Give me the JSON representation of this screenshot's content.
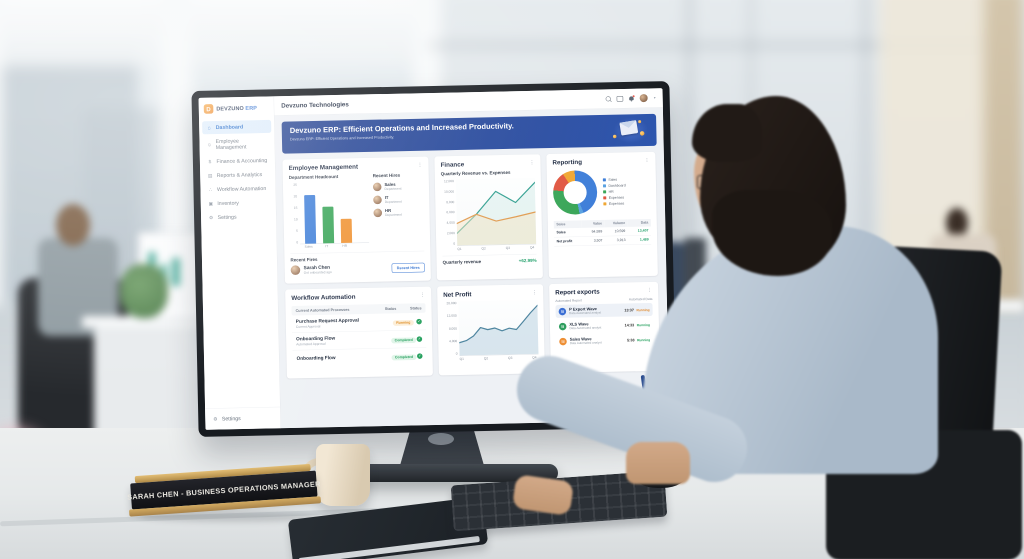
{
  "scene": {
    "nameplate": "SARAH CHEN - BUSINESS OPERATIONS MANAGER"
  },
  "app": {
    "brand": {
      "name": "DEVZUNO",
      "suffix": "ERP",
      "mark": "D"
    },
    "topbar": {
      "company": "Devzuno Technologies",
      "caret": "▾"
    },
    "banner": {
      "title": "Devzuno ERP: Efficient Operations and Increased Productivity.",
      "subtitle": "Devzuno ERP: Efficient Operations and Increased Productivity."
    },
    "sidebar": {
      "items": [
        {
          "label": "Dashboard",
          "icon": "home-icon",
          "glyph": "⌂",
          "active": true
        },
        {
          "label": "Employee Management",
          "icon": "people-icon",
          "glyph": "☺",
          "active": false
        },
        {
          "label": "Finance & Accounting",
          "icon": "dollar-icon",
          "glyph": "$",
          "active": false
        },
        {
          "label": "Reports & Analytics",
          "icon": "chart-icon",
          "glyph": "▤",
          "active": false
        },
        {
          "label": "Workflow Automation",
          "icon": "share-nodes-icon",
          "glyph": "∴",
          "active": false
        },
        {
          "label": "Inventory",
          "icon": "box-icon",
          "glyph": "▣",
          "active": false
        },
        {
          "label": "Settings",
          "icon": "gear-icon",
          "glyph": "⚙",
          "active": false
        }
      ],
      "footer": {
        "label": "Settings",
        "icon": "gear-icon",
        "glyph": "⚙"
      }
    },
    "cards": {
      "employee": {
        "title": "Employee Management",
        "menu": "⋮",
        "hires_title": "Recent Hires",
        "hires": [
          {
            "name": "Sales",
            "sub": "Department"
          },
          {
            "name": "IT",
            "sub": "Department"
          },
          {
            "name": "HR",
            "sub": "Department"
          }
        ],
        "bottom_title": "Recent Fires",
        "person": {
          "name": "Sarah Chen",
          "sub": "Got onboarded ago"
        },
        "button": "Recent Hires"
      },
      "finance": {
        "title": "Finance",
        "menu": "⋮",
        "footer_label": "Quarterly revenue",
        "footer_value": "+62.99%"
      },
      "reporting": {
        "title": "Reporting",
        "menu": "⋮",
        "table": {
          "headers": [
            "Sales",
            "Value",
            "Volume",
            "Data"
          ],
          "rows": [
            {
              "cells": [
                "Sales",
                "94,599",
                "10,599",
                "13,407"
              ]
            },
            {
              "cells": [
                "Net profit",
                "3,507",
                "3,913",
                "1,489"
              ]
            }
          ]
        }
      },
      "workflow": {
        "title": "Workflow Automation",
        "menu": "⋮",
        "headers": [
          "Current Automated Processes",
          "Status",
          "Status"
        ],
        "rows": [
          {
            "name": "Purchase Request Approval",
            "sub": "Current Approval",
            "status": "Running",
            "status_color": "#df8a1f",
            "check": "✓"
          },
          {
            "name": "Onboarding Flow",
            "sub": "Automated Approval",
            "status": "Completed",
            "status_color": "#27a15f",
            "check": "✓"
          },
          {
            "name": "Onboarding Flow",
            "sub": "",
            "status": "Completed",
            "status_color": "#27a15f",
            "check": "✓"
          }
        ]
      },
      "net_profit": {
        "title": "Net Profit",
        "menu": "⋮"
      },
      "reports": {
        "title": "Report exports",
        "menu": "⋮",
        "col_left": "Automated Report",
        "col_right": "Automated Data",
        "rows": [
          {
            "name": "P Export Wave",
            "sub": "Data Automated analyst",
            "value": "13:37",
            "status": "Running",
            "color": "#3b6fd4"
          },
          {
            "name": "XLS Wave",
            "sub": "Data Automated analyst",
            "value": "14:33",
            "status": "Running",
            "color": "#2f9e5f"
          },
          {
            "name": "Sales Wave",
            "sub": "Data Automated analyst",
            "value": "5:38",
            "status": "Running",
            "color": "#ee8f35"
          }
        ]
      }
    }
  },
  "chart_data": [
    {
      "name": "department_headcount",
      "type": "bar",
      "title": "Department Headcount",
      "categories": [
        "Sales",
        "IT",
        "HR"
      ],
      "values": [
        20,
        15,
        10
      ],
      "colors": [
        "#3b7cd8",
        "#36a455",
        "#f0912f"
      ],
      "yticks": [
        "25",
        "20",
        "15",
        "10",
        "5",
        "0"
      ],
      "ylim": [
        0,
        25
      ],
      "xlabel": "",
      "ylabel": "",
      "grid": false
    },
    {
      "name": "quarterly_revenue_vs_expenses",
      "type": "line",
      "title": "Quarterly Revenue vs. Expenses",
      "xticks": [
        "Q1",
        "Q2",
        "Q3",
        "Q4"
      ],
      "series": [
        {
          "name": "Revenue",
          "color": "#2f9e8f",
          "fill": "#bfe3dd",
          "fill_opacity": 0.35,
          "values": [
            2200,
            5600,
            9700,
            7600,
            11200
          ]
        },
        {
          "name": "Expenses",
          "color": "#e09a4e",
          "fill": "#f3e3c2",
          "fill_opacity": 0.5,
          "values": [
            4000,
            5600,
            4300,
            5000,
            5800
          ]
        }
      ],
      "yticks": [
        "12,000",
        "10,000",
        "8,000",
        "6,000",
        "4,000",
        "2,000",
        "0"
      ],
      "ylim": [
        0,
        12000
      ],
      "legend": "none",
      "grid": false
    },
    {
      "name": "reporting_breakdown",
      "type": "donut",
      "title": "Reporting",
      "slices": [
        {
          "label": "Sales",
          "value": 44,
          "color": "#3b7cd8"
        },
        {
          "label": "Dashboard",
          "value": 3,
          "color": "#57a0e0"
        },
        {
          "label": "HR",
          "value": 30,
          "color": "#36a455"
        },
        {
          "label": "Expenses",
          "value": 14,
          "color": "#e0533d"
        },
        {
          "label": "Expenses",
          "value": 9,
          "color": "#f0a52f"
        }
      ],
      "legend": "right"
    },
    {
      "name": "net_profit",
      "type": "area",
      "title": "Net Profit",
      "xticks": [
        "Q1",
        "Q2",
        "Q3",
        "Q4"
      ],
      "series": [
        {
          "name": "Net Profit",
          "color": "#4f86a0",
          "fill": "#cfe0ea",
          "fill_opacity": 0.8,
          "values": [
            5200,
            6000,
            7800,
            11200,
            10300,
            10900,
            9700,
            10700,
            10100,
            13400,
            16800,
            19800
          ]
        }
      ],
      "yticks": [
        "20,000",
        "12,000",
        "8,000",
        "4,000",
        "0"
      ],
      "ylim": [
        0,
        22000
      ],
      "grid": false
    }
  ]
}
